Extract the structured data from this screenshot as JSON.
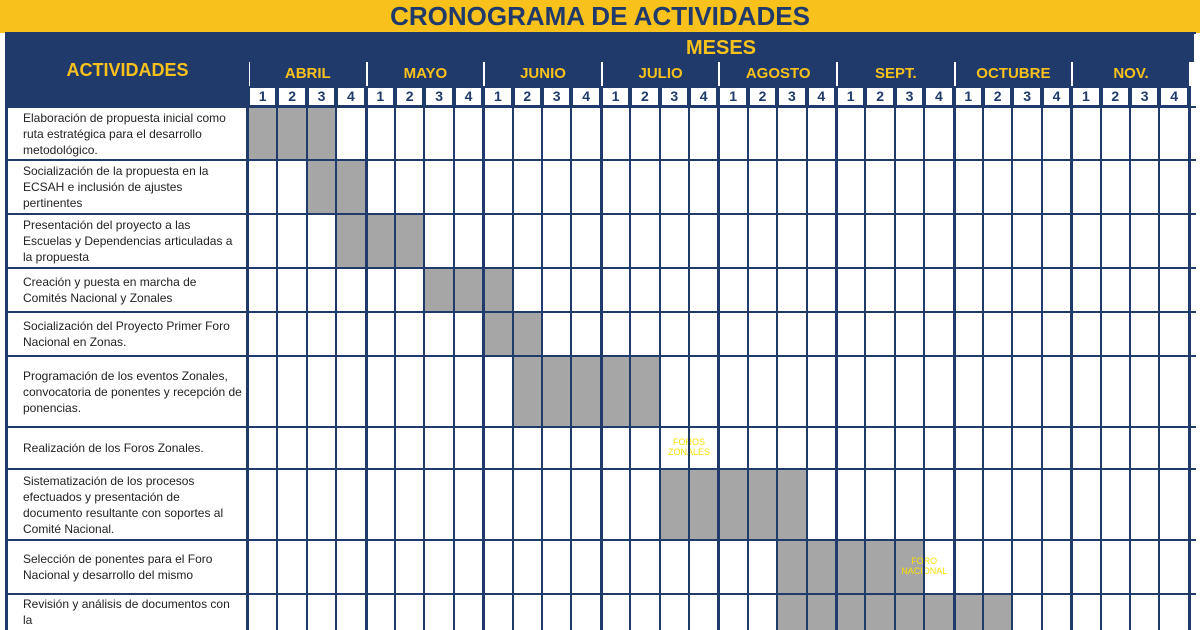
{
  "title": "CRONOGRAMA DE ACTIVIDADES",
  "header": {
    "activities": "ACTIVIDADES",
    "months_label": "MESES"
  },
  "months": [
    "ABRIL",
    "MAYO",
    "JUNIO",
    "JULIO",
    "AGOSTO",
    "SEPT.",
    "OCTUBRE",
    "NOV."
  ],
  "weeks": [
    "1",
    "2",
    "3",
    "4"
  ],
  "rows": [
    {
      "activity": "Elaboración de propuesta inicial como ruta estratégica para el desarrollo metodológico.",
      "weeks": [
        1,
        2,
        3
      ]
    },
    {
      "activity": "Socialización de la propuesta en la ECSAH e inclusión de ajustes pertinentes",
      "weeks": [
        3,
        4
      ]
    },
    {
      "activity": "Presentación del proyecto a las Escuelas y Dependencias articuladas a la propuesta",
      "weeks": [
        4,
        5,
        6
      ]
    },
    {
      "activity": "Creación y puesta en marcha de Comités Nacional y Zonales",
      "weeks": [
        7,
        8,
        9
      ]
    },
    {
      "activity": "Socialización del Proyecto Primer Foro Nacional en Zonas.",
      "weeks": [
        9,
        10
      ]
    },
    {
      "activity": "Programación de los eventos Zonales, convocatoria de ponentes y recepción de ponencias.",
      "weeks": [
        10,
        11,
        12,
        13,
        14
      ]
    },
    {
      "activity": "Realización de los Foros Zonales.",
      "weeks": [],
      "note": {
        "week": 15,
        "text": "FOROS ZONALES"
      }
    },
    {
      "activity": "Sistematización de los procesos efectuados y presentación de documento resultante con soportes al Comité Nacional.",
      "weeks": [
        15,
        16,
        17,
        18,
        19
      ]
    },
    {
      "activity": "Selección de ponentes para el Foro Nacional y desarrollo del mismo",
      "weeks": [
        19,
        20,
        21,
        22,
        23
      ],
      "note": {
        "week": 23,
        "text": "FORO NACIONAL"
      }
    },
    {
      "activity": "Revisión y análisis de documentos con la",
      "weeks": [
        19,
        20,
        21,
        22,
        23,
        24,
        25,
        26
      ]
    }
  ],
  "colors": {
    "navy": "#1f3a6b",
    "yellow": "#f9c11c",
    "shade": "#a6a6a6",
    "note": "#f9e000"
  }
}
